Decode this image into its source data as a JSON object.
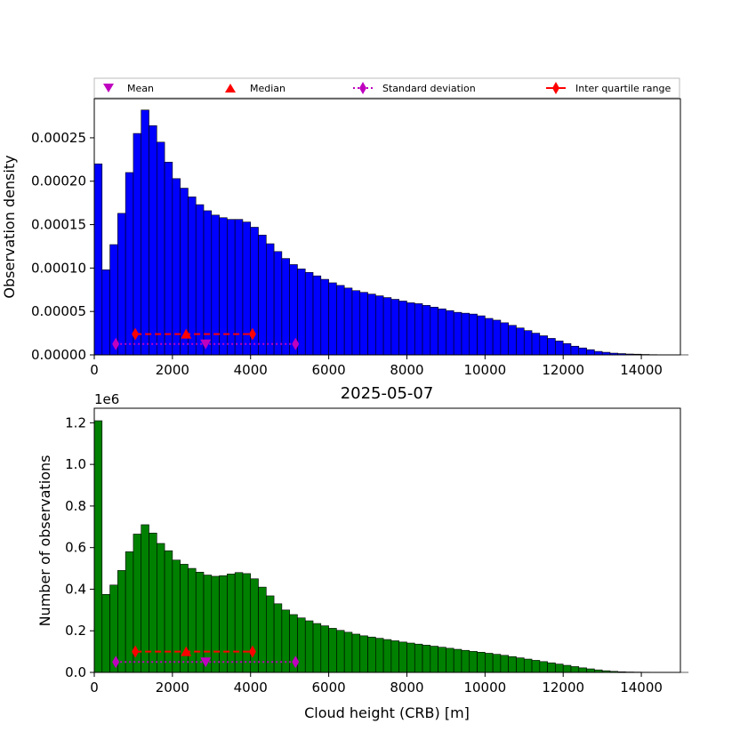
{
  "legend": {
    "mean": "Mean",
    "median": "Median",
    "std": "Standard deviation",
    "iqr": "Inter quartile range"
  },
  "colors": {
    "density_bars": "#0000ff",
    "count_bars": "#008000",
    "mean_marker": "#bf00bf",
    "median_marker": "#ff0000",
    "std": "#bf00bf",
    "iqr": "#ff0000"
  },
  "top_chart": {
    "ylabel": "Observation density"
  },
  "bottom_chart": {
    "title": "2025-05-07",
    "xlabel": "Cloud height (CRB) [m]",
    "ylabel": "Number of observations",
    "offset_text": "1e6"
  },
  "chart_data": [
    {
      "type": "bar",
      "title": "",
      "xlabel": "",
      "ylabel": "Observation density",
      "bin_width": 200,
      "bin_start": 0,
      "xlim": [
        0,
        15000
      ],
      "ylim": [
        0,
        0.000295
      ],
      "x_ticks": [
        0,
        2000,
        4000,
        6000,
        8000,
        10000,
        12000,
        14000
      ],
      "x_tick_labels": [
        "0",
        "2000",
        "4000",
        "6000",
        "8000",
        "10000",
        "12000",
        "14000"
      ],
      "y_ticks": [
        0,
        5e-05,
        0.0001,
        0.00015,
        0.0002,
        0.00025
      ],
      "y_tick_labels": [
        "0.00000",
        "0.00005",
        "0.00010",
        "0.00015",
        "0.00020",
        "0.00025"
      ],
      "values": [
        0.00022,
        9.8e-05,
        0.000127,
        0.000163,
        0.00021,
        0.000255,
        0.000282,
        0.000264,
        0.000245,
        0.000222,
        0.000203,
        0.000192,
        0.000182,
        0.000173,
        0.000166,
        0.000161,
        0.000158,
        0.000156,
        0.000156,
        0.000153,
        0.000147,
        0.000138,
        0.000128,
        0.000119,
        0.000111,
        0.000104,
        9.9e-05,
        9.5e-05,
        9.1e-05,
        8.7e-05,
        8.3e-05,
        8e-05,
        7.7e-05,
        7.4e-05,
        7.2e-05,
        7e-05,
        6.8e-05,
        6.6e-05,
        6.4e-05,
        6.2e-05,
        6e-05,
        5.9e-05,
        5.7e-05,
        5.5e-05,
        5.3e-05,
        5.1e-05,
        4.9e-05,
        4.8e-05,
        4.7e-05,
        4.5e-05,
        4.2e-05,
        4e-05,
        3.7e-05,
        3.4e-05,
        3.1e-05,
        2.8e-05,
        2.5e-05,
        2.2e-05,
        1.9e-05,
        1.6e-05,
        1.3e-05,
        1e-05,
        8e-06,
        6e-06,
        4e-06,
        3e-06,
        2e-06,
        1.5e-06,
        1e-06,
        8e-07,
        5e-07,
        3e-07,
        2e-07,
        1e-07,
        5e-08,
        2e-08
      ],
      "stats": {
        "mean": 2850,
        "median": 2350,
        "std_range": [
          550,
          5150
        ],
        "iqr_range": [
          1050,
          4050
        ],
        "std_y": 1.25e-05,
        "iqr_y": 2.4e-05
      }
    },
    {
      "type": "bar",
      "title": "2025-05-07",
      "xlabel": "Cloud height (CRB) [m]",
      "ylabel": "Number of observations",
      "bin_width": 200,
      "bin_start": 0,
      "xlim": [
        0,
        15000
      ],
      "ylim": [
        0,
        1270000
      ],
      "x_ticks": [
        0,
        2000,
        4000,
        6000,
        8000,
        10000,
        12000,
        14000
      ],
      "x_tick_labels": [
        "0",
        "2000",
        "4000",
        "6000",
        "8000",
        "10000",
        "12000",
        "14000"
      ],
      "y_ticks": [
        0,
        200000,
        400000,
        600000,
        800000,
        1000000,
        1200000
      ],
      "y_tick_labels": [
        "0.0",
        "0.2",
        "0.4",
        "0.6",
        "0.8",
        "1.0",
        "1.2"
      ],
      "values": [
        1210000,
        375000,
        420000,
        490000,
        580000,
        665000,
        710000,
        670000,
        620000,
        585000,
        540000,
        520000,
        500000,
        482000,
        468000,
        462000,
        465000,
        473000,
        480000,
        475000,
        450000,
        410000,
        368000,
        330000,
        300000,
        278000,
        262000,
        248000,
        235000,
        224000,
        212000,
        202000,
        193000,
        184000,
        176000,
        170000,
        164000,
        158000,
        152000,
        146000,
        141000,
        136000,
        131000,
        126000,
        121000,
        116000,
        111000,
        106000,
        101000,
        97000,
        92000,
        87000,
        82000,
        76000,
        70000,
        64000,
        58000,
        52000,
        46000,
        40000,
        34000,
        28000,
        22000,
        17000,
        12000,
        8000,
        5000,
        3000,
        2000,
        1500,
        1000,
        600,
        400,
        200,
        100,
        50
      ],
      "stats": {
        "mean": 2850,
        "median": 2350,
        "std_range": [
          550,
          5150
        ],
        "iqr_range": [
          1050,
          4050
        ],
        "std_y": 50000,
        "iqr_y": 100000
      }
    }
  ]
}
